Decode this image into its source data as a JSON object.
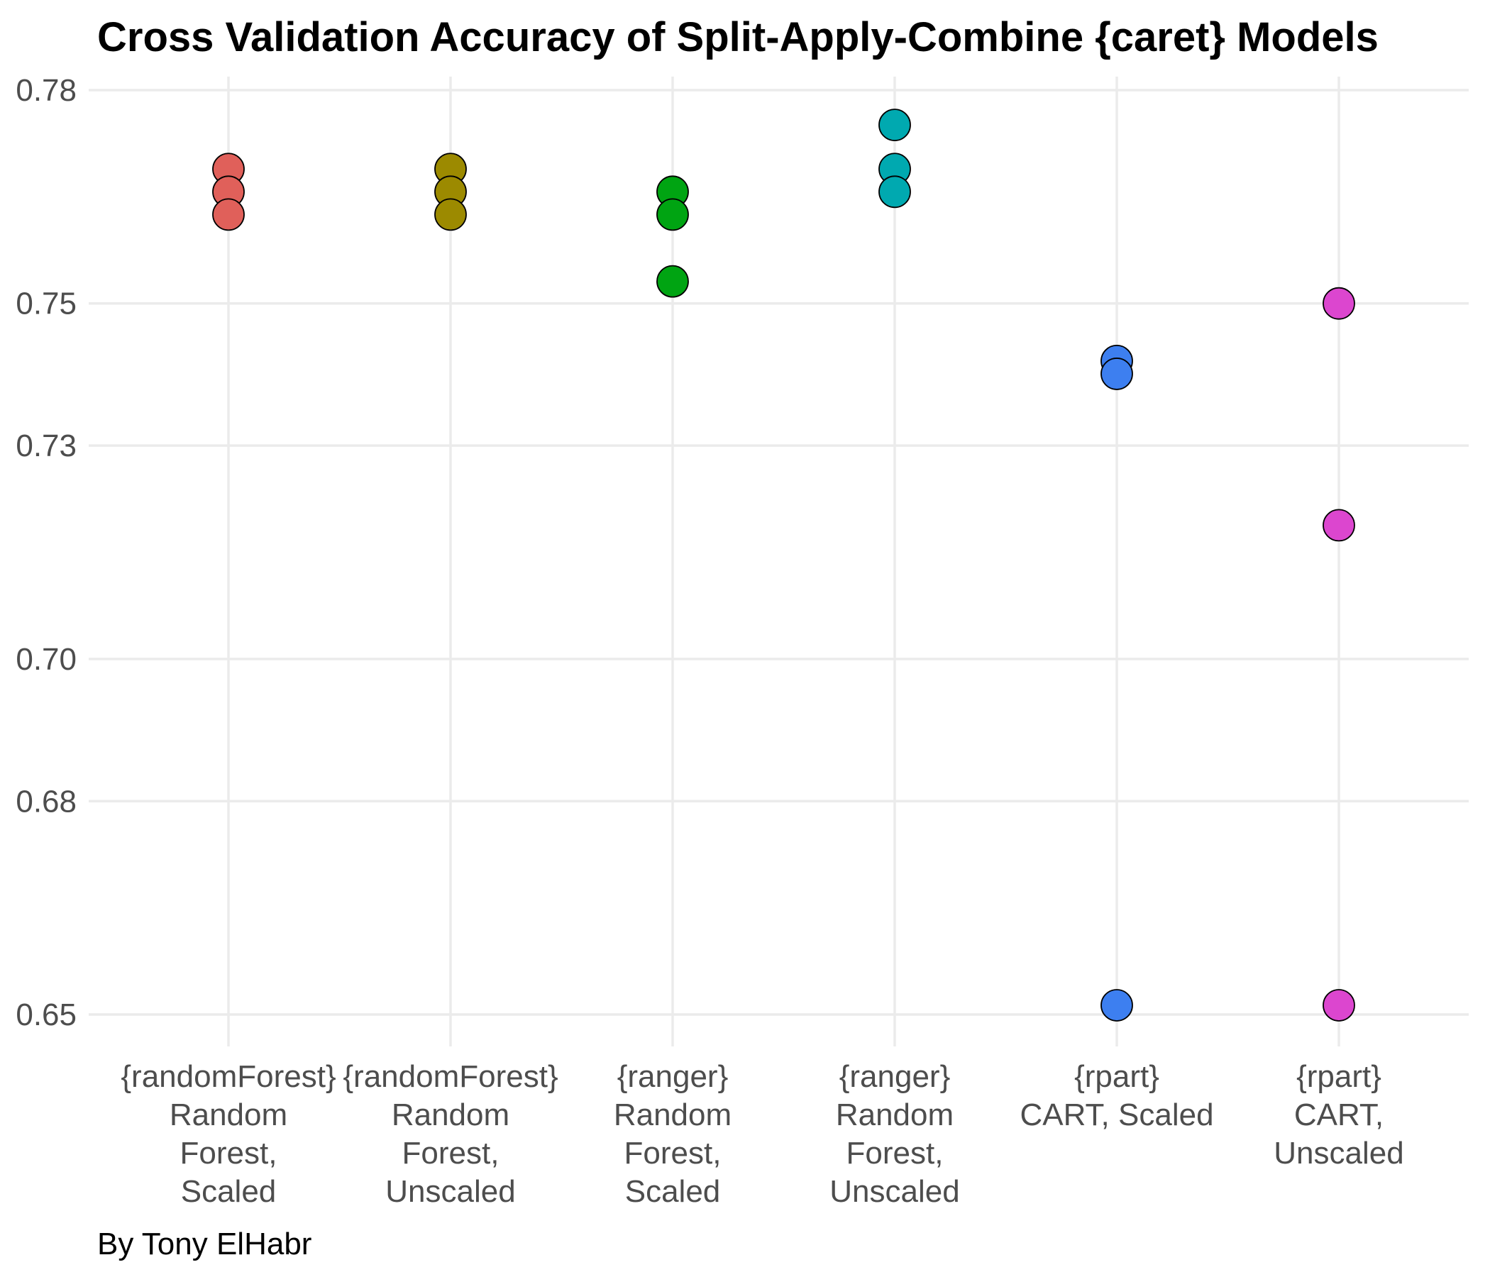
{
  "chart_data": {
    "type": "scatter",
    "title": "Cross Validation Accuracy of Split-Apply-Combine {caret} Models",
    "xlabel": "",
    "ylabel": "",
    "caption": "By Tony ElHabr",
    "ylim": [
      0.645,
      0.782
    ],
    "yticks": [
      0.65,
      0.68,
      0.7,
      0.73,
      0.75,
      0.78
    ],
    "ytick_labels": [
      "0.65",
      "0.68",
      "0.70",
      "0.73",
      "0.75",
      "0.78"
    ],
    "grid": true,
    "legend": "none",
    "categories": [
      {
        "label_lines": [
          "{randomForest}",
          "Random",
          "Forest,",
          "Scaled"
        ],
        "color": "#E0605A",
        "values": [
          0.7689,
          0.7657,
          0.7625
        ]
      },
      {
        "label_lines": [
          "{randomForest}",
          "Random",
          "Forest,",
          "Unscaled"
        ],
        "color": "#9C8A00",
        "values": [
          0.7689,
          0.7657,
          0.7625
        ]
      },
      {
        "label_lines": [
          "{ranger}",
          "Random",
          "Forest,",
          "Scaled"
        ],
        "color": "#00A412",
        "values": [
          0.7657,
          0.7625,
          0.7531
        ]
      },
      {
        "label_lines": [
          "{ranger}",
          "Random",
          "Forest,",
          "Unscaled"
        ],
        "color": "#00A9B0",
        "values": [
          0.7751,
          0.7689,
          0.7657
        ]
      },
      {
        "label_lines": [
          "{rpart}",
          "CART, Scaled"
        ],
        "color": "#3D7FF0",
        "values": [
          0.7419,
          0.7401,
          0.6513
        ]
      },
      {
        "label_lines": [
          "{rpart}",
          "CART,",
          "Unscaled"
        ],
        "color": "#DC46CF",
        "values": [
          0.75,
          0.7188,
          0.6513
        ]
      }
    ]
  }
}
